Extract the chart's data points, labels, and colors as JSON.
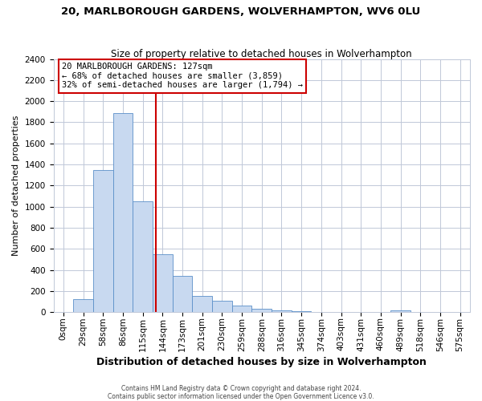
{
  "title": "20, MARLBOROUGH GARDENS, WOLVERHAMPTON, WV6 0LU",
  "subtitle": "Size of property relative to detached houses in Wolverhampton",
  "xlabel": "Distribution of detached houses by size in Wolverhampton",
  "ylabel": "Number of detached properties",
  "bin_labels": [
    "0sqm",
    "29sqm",
    "58sqm",
    "86sqm",
    "115sqm",
    "144sqm",
    "173sqm",
    "201sqm",
    "230sqm",
    "259sqm",
    "288sqm",
    "316sqm",
    "345sqm",
    "374sqm",
    "403sqm",
    "431sqm",
    "460sqm",
    "489sqm",
    "518sqm",
    "546sqm",
    "575sqm"
  ],
  "bar_heights": [
    0,
    120,
    1350,
    1890,
    1050,
    550,
    340,
    150,
    105,
    60,
    30,
    15,
    7,
    5,
    3,
    2,
    1,
    15,
    1,
    1,
    0
  ],
  "bar_color": "#c8d9f0",
  "bar_edge_color": "#5b8fc9",
  "vline_x_index": 4.65,
  "vline_color": "#cc0000",
  "annotation_title": "20 MARLBOROUGH GARDENS: 127sqm",
  "annotation_line1": "← 68% of detached houses are smaller (3,859)",
  "annotation_line2": "32% of semi-detached houses are larger (1,794) →",
  "annotation_box_color": "#ffffff",
  "annotation_box_edge": "#cc0000",
  "ylim": [
    0,
    2400
  ],
  "yticks": [
    0,
    200,
    400,
    600,
    800,
    1000,
    1200,
    1400,
    1600,
    1800,
    2000,
    2200,
    2400
  ],
  "footer_line1": "Contains HM Land Registry data © Crown copyright and database right 2024.",
  "footer_line2": "Contains public sector information licensed under the Open Government Licence v3.0.",
  "background_color": "#ffffff",
  "grid_color": "#c0c8d8",
  "title_fontsize": 9.5,
  "subtitle_fontsize": 8.5,
  "xlabel_fontsize": 9,
  "ylabel_fontsize": 8,
  "tick_fontsize": 7.5,
  "annotation_fontsize": 7.5,
  "footer_fontsize": 5.5
}
